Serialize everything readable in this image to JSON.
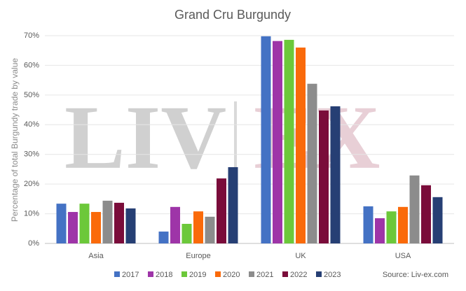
{
  "chart_data": {
    "type": "bar",
    "title": "Grand Cru Burgundy",
    "y_label": "Percentage of total Burgundy trade by value",
    "source": "Source: Liv-ex.com",
    "watermark": [
      "LIV",
      "EX"
    ],
    "categories": [
      "Asia",
      "Europe",
      "UK",
      "USA"
    ],
    "series": [
      {
        "name": "2017",
        "color": "#4472c4",
        "values": [
          13.4,
          4.0,
          69.8,
          12.5
        ]
      },
      {
        "name": "2018",
        "color": "#9e35a8",
        "values": [
          10.6,
          12.3,
          68.2,
          8.5
        ]
      },
      {
        "name": "2019",
        "color": "#6cc83a",
        "values": [
          13.4,
          6.6,
          68.6,
          10.8
        ]
      },
      {
        "name": "2020",
        "color": "#fa6a0a",
        "values": [
          10.6,
          10.8,
          66.0,
          12.3
        ]
      },
      {
        "name": "2021",
        "color": "#8c8c8c",
        "values": [
          14.4,
          9.0,
          53.8,
          22.9
        ]
      },
      {
        "name": "2022",
        "color": "#7a0c3a",
        "values": [
          13.7,
          21.9,
          44.8,
          19.6
        ]
      },
      {
        "name": "2023",
        "color": "#263f74",
        "values": [
          11.8,
          25.7,
          46.2,
          15.6
        ]
      }
    ],
    "ylim": [
      0,
      70
    ],
    "yticks": [
      {
        "value": 0,
        "label": "0%"
      },
      {
        "value": 10,
        "label": "10%"
      },
      {
        "value": 20,
        "label": "20%"
      },
      {
        "value": 30,
        "label": "30%"
      },
      {
        "value": 40,
        "label": "40%"
      },
      {
        "value": 50,
        "label": "50%"
      },
      {
        "value": 60,
        "label": "60%"
      },
      {
        "value": 70,
        "label": "70%"
      }
    ],
    "grid": true,
    "legend": "bottom"
  }
}
